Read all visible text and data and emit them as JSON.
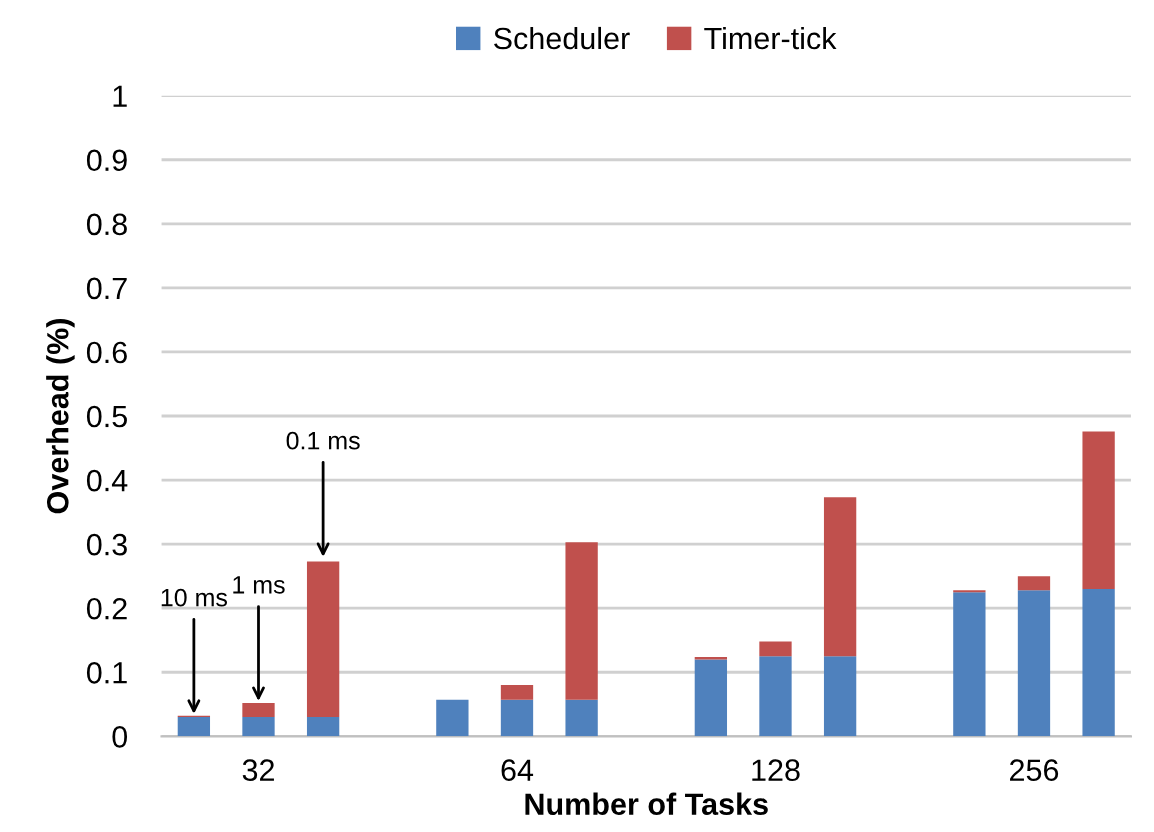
{
  "chart_data": {
    "type": "bar",
    "stacked": true,
    "xlabel": "Number of Tasks",
    "ylabel": "Overhead (%)",
    "categories": [
      null,
      "32",
      null,
      null,
      null,
      "64",
      null,
      null,
      null,
      "128",
      null,
      null,
      null,
      "256",
      null
    ],
    "series": [
      {
        "name": "Scheduler",
        "color": "#4f81bd",
        "values": [
          0.03,
          0.03,
          0.03,
          null,
          0.057,
          0.057,
          0.057,
          null,
          0.12,
          0.125,
          0.125,
          null,
          0.225,
          0.228,
          0.23
        ]
      },
      {
        "name": "Timer-tick",
        "color": "#c0504d",
        "values": [
          0.002,
          0.022,
          0.243,
          null,
          0,
          0.023,
          0.246,
          null,
          0.004,
          0.023,
          0.248,
          null,
          0.003,
          0.022,
          0.246
        ]
      }
    ],
    "ylim": [
      0,
      1
    ],
    "yticks": [
      0,
      0.1,
      0.2,
      0.3,
      0.4,
      0.5,
      0.6,
      0.7,
      0.8,
      0.9,
      1
    ],
    "grid": "y",
    "legend": "top",
    "annotations": [
      {
        "text": "10 ms",
        "y": 0.035
      },
      {
        "text": "1 ms",
        "x": "32",
        "y": 0.055
      },
      {
        "text": "0.1 ms",
        "y": 0.28
      }
    ]
  }
}
